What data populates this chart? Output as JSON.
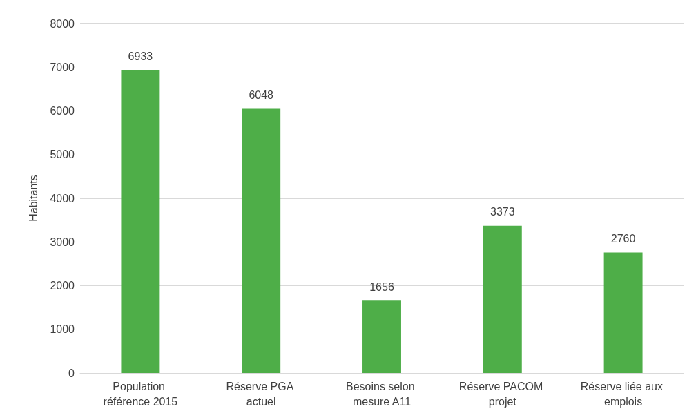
{
  "chart_data": {
    "type": "bar",
    "ylabel": "Habitants",
    "categories": [
      "Population référence 2015",
      "Réserve PGA actuel",
      "Besoins selon mesure A11",
      "Réserve PACOM projet",
      "Réserve liée aux emplois"
    ],
    "values": [
      6933,
      6048,
      1656,
      3373,
      2760
    ],
    "color": "#4eae48",
    "ylim": [
      0,
      8000
    ],
    "yticks": [
      0,
      1000,
      2000,
      3000,
      4000,
      5000,
      6000,
      7000,
      8000
    ],
    "grid": "y",
    "data_labels": true
  }
}
